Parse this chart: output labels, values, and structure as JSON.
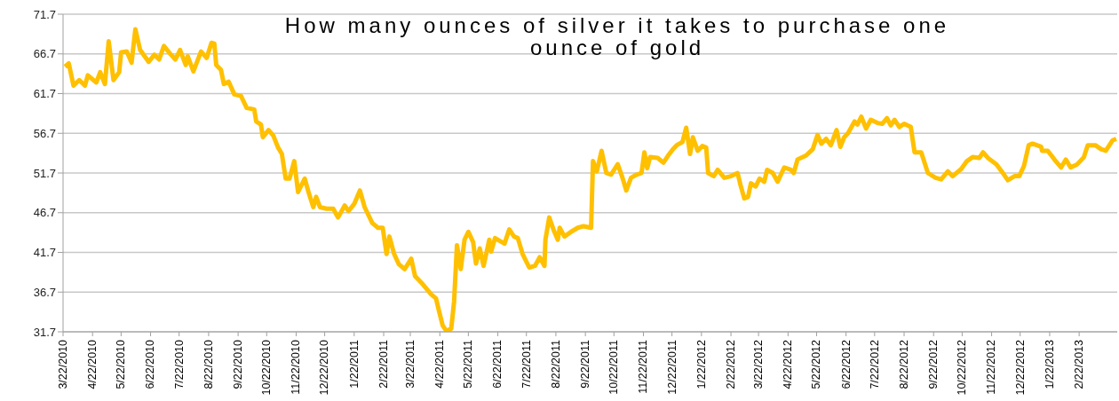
{
  "chart_data": {
    "type": "line",
    "title": "How many ounces of silver it takes to purchase one ounce of gold",
    "x": [
      "2010-03-24",
      "2010-03-28",
      "2010-04-02",
      "2010-04-08",
      "2010-04-14",
      "2010-04-17",
      "2010-04-26",
      "2010-04-30",
      "2010-05-05",
      "2010-05-09",
      "2010-05-14",
      "2010-05-20",
      "2010-05-22",
      "2010-05-28",
      "2010-06-02",
      "2010-06-06",
      "2010-06-11",
      "2010-06-20",
      "2010-06-26",
      "2010-07-01",
      "2010-07-06",
      "2010-07-12",
      "2010-07-18",
      "2010-07-23",
      "2010-07-29",
      "2010-07-31",
      "2010-08-06",
      "2010-08-14",
      "2010-08-20",
      "2010-08-25",
      "2010-08-28",
      "2010-08-30",
      "2010-09-04",
      "2010-09-07",
      "2010-09-12",
      "2010-09-18",
      "2010-09-25",
      "2010-10-01",
      "2010-10-09",
      "2010-10-11",
      "2010-10-16",
      "2010-10-18",
      "2010-10-24",
      "2010-10-29",
      "2010-11-03",
      "2010-11-07",
      "2010-11-11",
      "2010-11-15",
      "2010-11-20",
      "2010-11-24",
      "2010-12-01",
      "2010-12-05",
      "2010-12-10",
      "2010-12-13",
      "2010-12-17",
      "2010-12-24",
      "2010-12-31",
      "2011-01-05",
      "2011-01-12",
      "2011-01-16",
      "2011-01-22",
      "2011-01-28",
      "2011-02-02",
      "2011-02-10",
      "2011-02-16",
      "2011-02-21",
      "2011-02-25",
      "2011-02-28",
      "2011-03-05",
      "2011-03-10",
      "2011-03-16",
      "2011-03-23",
      "2011-03-27",
      "2011-04-04",
      "2011-04-13",
      "2011-04-18",
      "2011-04-21",
      "2011-04-25",
      "2011-04-29",
      "2011-05-04",
      "2011-05-07",
      "2011-05-10",
      "2011-05-14",
      "2011-05-18",
      "2011-05-22",
      "2011-05-27",
      "2011-05-30",
      "2011-06-03",
      "2011-06-07",
      "2011-06-13",
      "2011-06-15",
      "2011-06-19",
      "2011-06-29",
      "2011-07-04",
      "2011-07-09",
      "2011-07-13",
      "2011-07-18",
      "2011-07-25",
      "2011-07-31",
      "2011-08-05",
      "2011-08-10",
      "2011-08-11",
      "2011-08-15",
      "2011-08-20",
      "2011-08-24",
      "2011-08-26",
      "2011-08-31",
      "2011-09-07",
      "2011-09-14",
      "2011-09-20",
      "2011-09-28",
      "2011-09-30",
      "2011-10-04",
      "2011-10-09",
      "2011-10-14",
      "2011-10-19",
      "2011-10-26",
      "2011-10-31",
      "2011-11-04",
      "2011-11-09",
      "2011-11-15",
      "2011-11-20",
      "2011-11-23",
      "2011-11-26",
      "2011-11-29",
      "2011-12-07",
      "2011-12-13",
      "2011-12-18",
      "2011-12-23",
      "2011-12-27",
      "2012-01-02",
      "2012-01-06",
      "2012-01-10",
      "2012-01-13",
      "2012-01-18",
      "2012-01-23",
      "2012-01-27",
      "2012-01-29",
      "2012-02-04",
      "2012-02-08",
      "2012-02-15",
      "2012-02-22",
      "2012-02-29",
      "2012-03-03",
      "2012-03-07",
      "2012-03-11",
      "2012-03-14",
      "2012-03-19",
      "2012-03-23",
      "2012-03-28",
      "2012-03-31",
      "2012-04-06",
      "2012-04-11",
      "2012-04-18",
      "2012-04-25",
      "2012-04-28",
      "2012-05-02",
      "2012-05-11",
      "2012-05-18",
      "2012-05-23",
      "2012-05-27",
      "2012-06-01",
      "2012-06-06",
      "2012-06-12",
      "2012-06-16",
      "2012-06-20",
      "2012-06-24",
      "2012-07-01",
      "2012-07-04",
      "2012-07-08",
      "2012-07-13",
      "2012-07-18",
      "2012-07-25",
      "2012-07-30",
      "2012-08-04",
      "2012-08-08",
      "2012-08-12",
      "2012-08-17",
      "2012-08-22",
      "2012-08-29",
      "2012-09-02",
      "2012-09-09",
      "2012-09-16",
      "2012-09-24",
      "2012-09-30",
      "2012-10-07",
      "2012-10-12",
      "2012-10-21",
      "2012-10-27",
      "2012-11-02",
      "2012-11-09",
      "2012-11-13",
      "2012-11-18",
      "2012-11-27",
      "2012-12-05",
      "2012-12-09",
      "2012-12-16",
      "2012-12-21",
      "2012-12-26",
      "2012-12-31",
      "2013-01-04",
      "2013-01-13",
      "2013-01-14",
      "2013-01-20",
      "2013-01-27",
      "2013-02-03",
      "2013-02-08",
      "2013-02-13",
      "2013-02-20",
      "2013-02-27",
      "2013-03-03",
      "2013-03-11",
      "2013-03-17",
      "2013-03-22",
      "2013-03-29",
      "2013-04-02"
    ],
    "series": [
      {
        "color": "#ffc000",
        "values": [
          65.1,
          65.5,
          62.7,
          63.4,
          62.7,
          64.0,
          63.1,
          64.4,
          62.9,
          68.3,
          63.4,
          64.4,
          66.9,
          67.0,
          65.6,
          69.8,
          67.2,
          65.7,
          66.6,
          66.0,
          67.7,
          66.8,
          66.0,
          67.2,
          65.3,
          66.4,
          64.5,
          67.0,
          66.2,
          68.1,
          68.0,
          65.3,
          64.7,
          62.9,
          63.2,
          61.6,
          61.4,
          59.9,
          59.7,
          58.2,
          57.8,
          56.2,
          57.1,
          56.4,
          54.9,
          54.1,
          51.0,
          51.0,
          53.2,
          49.3,
          51.0,
          49.3,
          47.4,
          48.7,
          47.4,
          47.2,
          47.2,
          46.1,
          47.6,
          46.9,
          47.8,
          49.5,
          47.4,
          45.4,
          44.8,
          44.8,
          41.5,
          43.7,
          41.5,
          40.2,
          39.6,
          40.9,
          38.7,
          37.7,
          36.4,
          35.9,
          34.4,
          32.5,
          31.8,
          32.1,
          35.5,
          42.6,
          39.6,
          43.3,
          44.3,
          43.0,
          40.3,
          42.2,
          40.0,
          43.3,
          41.8,
          43.5,
          42.8,
          44.6,
          43.7,
          43.5,
          41.5,
          39.8,
          40.0,
          41.1,
          40.0,
          43.3,
          46.1,
          44.4,
          43.3,
          44.8,
          43.7,
          44.3,
          44.8,
          45.0,
          44.8,
          53.2,
          51.9,
          54.5,
          51.7,
          51.5,
          52.8,
          51.1,
          49.5,
          51.1,
          51.5,
          51.7,
          54.3,
          52.3,
          53.7,
          53.6,
          53.0,
          53.9,
          54.7,
          55.2,
          55.6,
          57.4,
          54.1,
          56.2,
          54.5,
          55.1,
          54.9,
          51.7,
          51.3,
          52.1,
          51.1,
          51.3,
          51.7,
          50.2,
          48.5,
          48.7,
          50.4,
          50.0,
          51.0,
          50.6,
          52.1,
          51.7,
          50.6,
          52.4,
          52.1,
          51.7,
          53.4,
          53.9,
          54.7,
          56.5,
          55.4,
          56.0,
          55.2,
          57.1,
          55.0,
          56.2,
          56.7,
          58.2,
          57.8,
          58.8,
          57.3,
          58.4,
          58.0,
          57.9,
          58.6,
          57.7,
          58.4,
          57.5,
          57.9,
          57.5,
          54.3,
          54.3,
          51.7,
          51.1,
          50.9,
          51.9,
          51.3,
          52.2,
          53.2,
          53.7,
          53.6,
          54.3,
          53.6,
          52.8,
          51.5,
          50.8,
          51.3,
          51.3,
          52.6,
          55.2,
          55.4,
          55.0,
          54.5,
          54.5,
          53.4,
          52.4,
          53.4,
          52.4,
          52.8,
          53.7,
          55.2,
          55.2,
          54.7,
          54.5,
          55.8,
          56.0
        ]
      }
    ],
    "xlim": [
      "2010-03-22",
      "2013-04-03"
    ],
    "xticks": [
      {
        "value": "2010-03-22",
        "label": "3/22/2010"
      },
      {
        "value": "2010-04-22",
        "label": "4/22/2010"
      },
      {
        "value": "2010-05-22",
        "label": "5/22/2010"
      },
      {
        "value": "2010-06-22",
        "label": "6/22/2010"
      },
      {
        "value": "2010-07-22",
        "label": "7/22/2010"
      },
      {
        "value": "2010-08-22",
        "label": "8/22/2010"
      },
      {
        "value": "2010-09-22",
        "label": "9/22/2010"
      },
      {
        "value": "2010-10-22",
        "label": "10/22/2010"
      },
      {
        "value": "2010-11-22",
        "label": "11/22/2010"
      },
      {
        "value": "2010-12-22",
        "label": "12/22/2010"
      },
      {
        "value": "2011-01-22",
        "label": "1/22/2011"
      },
      {
        "value": "2011-02-22",
        "label": "2/22/2011"
      },
      {
        "value": "2011-03-22",
        "label": "3/22/2011"
      },
      {
        "value": "2011-04-22",
        "label": "4/22/2011"
      },
      {
        "value": "2011-05-22",
        "label": "5/22/2011"
      },
      {
        "value": "2011-06-22",
        "label": "6/22/2011"
      },
      {
        "value": "2011-07-22",
        "label": "7/22/2011"
      },
      {
        "value": "2011-08-22",
        "label": "8/22/2011"
      },
      {
        "value": "2011-09-22",
        "label": "9/22/2011"
      },
      {
        "value": "2011-10-22",
        "label": "10/22/2011"
      },
      {
        "value": "2011-11-22",
        "label": "11/22/2011"
      },
      {
        "value": "2011-12-22",
        "label": "12/22/2011"
      },
      {
        "value": "2012-01-22",
        "label": "1/22/2012"
      },
      {
        "value": "2012-02-22",
        "label": "2/22/2012"
      },
      {
        "value": "2012-03-22",
        "label": "3/22/2012"
      },
      {
        "value": "2012-04-22",
        "label": "4/22/2012"
      },
      {
        "value": "2012-05-22",
        "label": "5/22/2012"
      },
      {
        "value": "2012-06-22",
        "label": "6/22/2012"
      },
      {
        "value": "2012-07-22",
        "label": "7/22/2012"
      },
      {
        "value": "2012-08-22",
        "label": "8/22/2012"
      },
      {
        "value": "2012-09-22",
        "label": "9/22/2012"
      },
      {
        "value": "2012-10-22",
        "label": "10/22/2012"
      },
      {
        "value": "2012-11-22",
        "label": "11/22/2012"
      },
      {
        "value": "2012-12-22",
        "label": "12/22/2012"
      },
      {
        "value": "2013-01-22",
        "label": "1/22/2013"
      },
      {
        "value": "2013-02-22",
        "label": "2/22/2013"
      }
    ],
    "ylim": [
      31.7,
      71.7
    ],
    "yticks": [
      31.7,
      36.7,
      41.7,
      46.7,
      51.7,
      56.7,
      61.7,
      66.7,
      71.7
    ],
    "grid": "y",
    "legend": false,
    "marker": "none",
    "line_style": "solid"
  }
}
